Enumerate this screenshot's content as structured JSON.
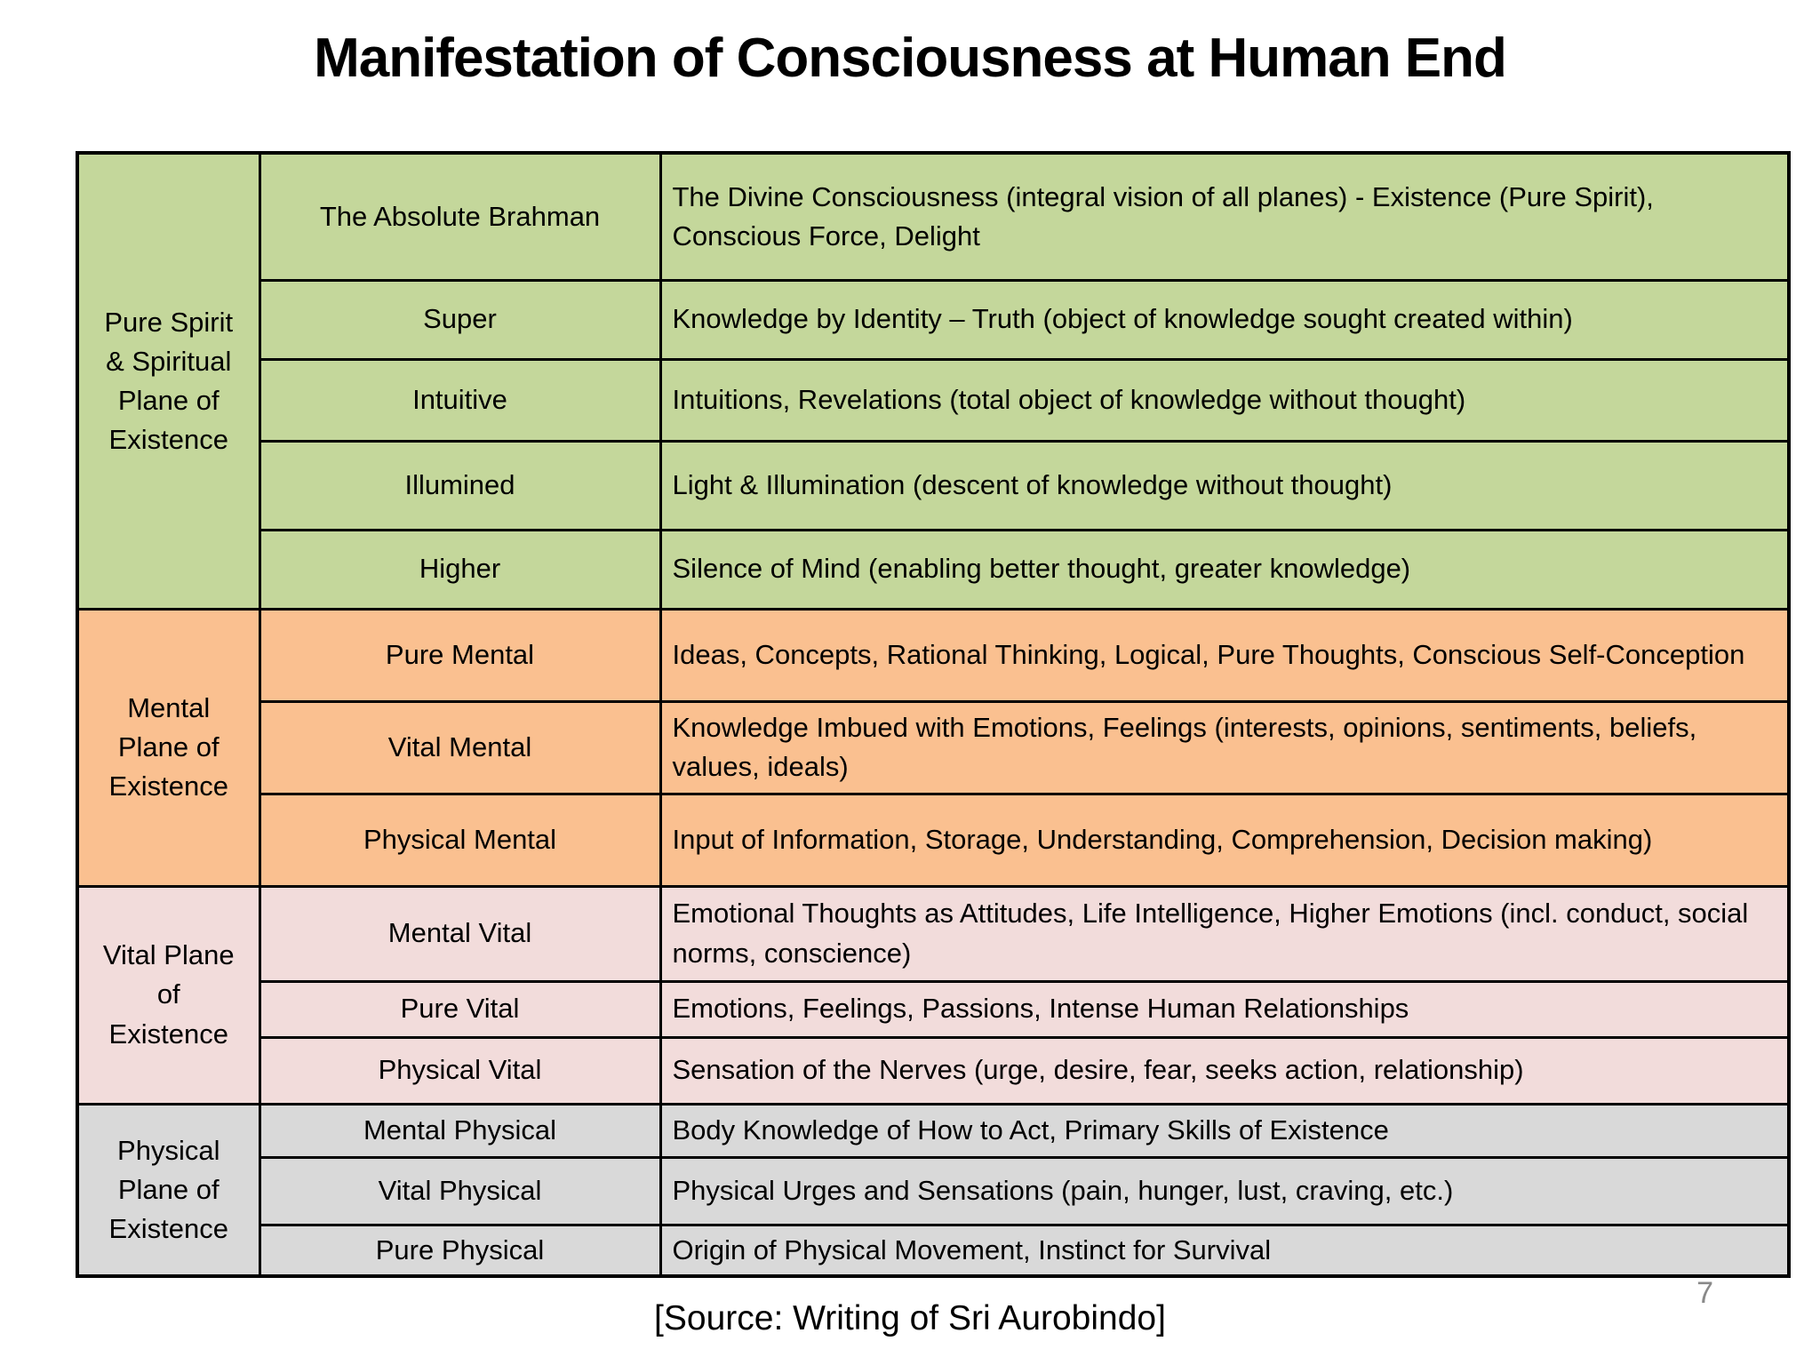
{
  "slide": {
    "title": "Manifestation of Consciousness at Human End",
    "source": "[Source: Writing of Sri Aurobindo]",
    "page_number": "7"
  },
  "colors": {
    "spiritual_green": "#c4d79b",
    "mental_orange": "#fac090",
    "vital_pink": "#f2dcdb",
    "physical_gray": "#d9d9d9",
    "border": "#000000",
    "text": "#000000",
    "page_number_gray": "#898989"
  },
  "table": {
    "groups": [
      {
        "plane": "Pure Spirit\n& Spiritual\nPlane of\nExistence",
        "color_key": "spiritual_green",
        "rows": [
          {
            "level": "The Absolute Brahman",
            "description": "The Divine Consciousness (integral vision of all planes) - Existence (Pure Spirit), Conscious Force, Delight"
          },
          {
            "level": "Super",
            "description": "Knowledge by Identity – Truth (object of knowledge sought created within)"
          },
          {
            "level": "Intuitive",
            "description": "Intuitions, Revelations (total object of knowledge without thought)"
          },
          {
            "level": "Illumined",
            "description": "Light & Illumination (descent of knowledge without thought)"
          },
          {
            "level": "Higher",
            "description": "Silence of Mind (enabling better thought, greater knowledge)"
          }
        ]
      },
      {
        "plane": "Mental\nPlane of\nExistence",
        "color_key": "mental_orange",
        "rows": [
          {
            "level": "Pure Mental",
            "description": "Ideas, Concepts, Rational Thinking, Logical, Pure Thoughts, Conscious Self-Conception"
          },
          {
            "level": "Vital Mental",
            "description": "Knowledge Imbued with Emotions, Feelings (interests, opinions, sentiments, beliefs, values, ideals)"
          },
          {
            "level": "Physical Mental",
            "description": "Input of Information, Storage, Understanding, Comprehension, Decision making)"
          }
        ]
      },
      {
        "plane": "Vital Plane\nof\nExistence",
        "color_key": "vital_pink",
        "rows": [
          {
            "level": "Mental Vital",
            "description": "Emotional Thoughts as Attitudes, Life Intelligence, Higher Emotions (incl. conduct, social norms, conscience)"
          },
          {
            "level": "Pure Vital",
            "description": "Emotions, Feelings, Passions, Intense Human Relationships"
          },
          {
            "level": "Physical Vital",
            "description": "Sensation of the Nerves (urge, desire, fear, seeks action, relationship)"
          }
        ]
      },
      {
        "plane": "Physical\nPlane of\nExistence",
        "color_key": "physical_gray",
        "rows": [
          {
            "level": "Mental Physical",
            "description": "Body Knowledge of How to Act, Primary Skills of Existence"
          },
          {
            "level": "Vital Physical",
            "description": "Physical Urges and Sensations (pain, hunger, lust, craving, etc.)"
          },
          {
            "level": "Pure Physical",
            "description": "Origin of Physical Movement, Instinct for Survival"
          }
        ]
      }
    ]
  }
}
